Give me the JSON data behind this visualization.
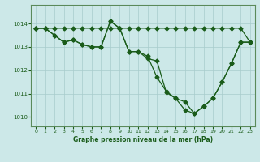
{
  "title": "Graphe pression niveau de la mer (hPa)",
  "bg_color": "#cce8e8",
  "plot_bg_color": "#cce8e8",
  "line_color": "#1a5c1a",
  "marker_color": "#1a5c1a",
  "grid_color": "#a8cccc",
  "xlim": [
    -0.5,
    23.5
  ],
  "ylim": [
    1009.6,
    1014.8
  ],
  "yticks": [
    1010,
    1011,
    1012,
    1013,
    1014
  ],
  "xticks": [
    0,
    1,
    2,
    3,
    4,
    5,
    6,
    7,
    8,
    9,
    10,
    11,
    12,
    13,
    14,
    15,
    16,
    17,
    18,
    19,
    20,
    21,
    22,
    23
  ],
  "series1_x": [
    0,
    1,
    2,
    3,
    4,
    5,
    6,
    7,
    8,
    9,
    10,
    11,
    12,
    13,
    14,
    15,
    16,
    17,
    18,
    19,
    20,
    21,
    22,
    23
  ],
  "series1_y": [
    1013.8,
    1013.8,
    1013.8,
    1013.8,
    1013.8,
    1013.8,
    1013.8,
    1013.8,
    1013.8,
    1013.8,
    1013.8,
    1013.8,
    1013.8,
    1013.8,
    1013.8,
    1013.8,
    1013.8,
    1013.8,
    1013.8,
    1013.8,
    1013.8,
    1013.8,
    1013.8,
    1013.2
  ],
  "series2_x": [
    0,
    1,
    2,
    3,
    4,
    5,
    6,
    7,
    8,
    9,
    10,
    11,
    12,
    13,
    14,
    15,
    16,
    17,
    18,
    19,
    20,
    21,
    22,
    23
  ],
  "series2_y": [
    1013.8,
    1013.8,
    1013.5,
    1013.2,
    1013.3,
    1013.1,
    1013.0,
    1013.0,
    1014.1,
    1013.8,
    1012.8,
    1012.8,
    1012.6,
    1011.7,
    1011.1,
    1010.8,
    1010.3,
    1010.15,
    1010.45,
    1010.8,
    1011.5,
    1012.3,
    1013.2,
    1013.2
  ],
  "series3_x": [
    0,
    1,
    2,
    3,
    4,
    5,
    6,
    7,
    8,
    9,
    10,
    11,
    12,
    13,
    14,
    15,
    16,
    17,
    18,
    19,
    20,
    21,
    22,
    23
  ],
  "series3_y": [
    1013.8,
    1013.8,
    1013.5,
    1013.2,
    1013.3,
    1013.1,
    1013.0,
    1013.0,
    1014.1,
    1013.8,
    1012.8,
    1012.8,
    1012.5,
    1012.4,
    1011.05,
    1010.8,
    1010.65,
    1010.15,
    1010.45,
    1010.8,
    1011.5,
    1012.3,
    1013.2,
    1013.2
  ]
}
